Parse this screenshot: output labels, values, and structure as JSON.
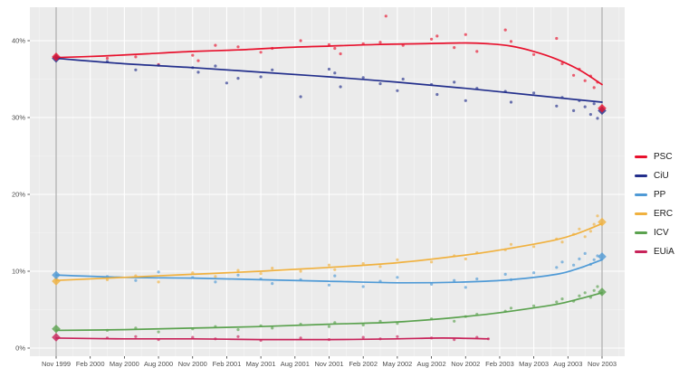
{
  "style": {
    "figure_background": "#ffffff",
    "plot_background": "#ebebeb",
    "grid_major_color": "#ffffff",
    "grid_minor_color": "#ffffff",
    "election_line_color": "#9f9f9f",
    "axis_tick_color": "#333333",
    "axis_label_color": "#4d4d4d"
  },
  "chart_data": {
    "type": "scatter",
    "title": "",
    "xlabel": "",
    "ylabel": "",
    "x_unit": "months since Nov 1999",
    "x_axis_ticks": [
      {
        "month": 0,
        "label": "Nov 1999"
      },
      {
        "month": 3,
        "label": "Feb 2000"
      },
      {
        "month": 6,
        "label": "May 2000"
      },
      {
        "month": 9,
        "label": "Aug 2000"
      },
      {
        "month": 12,
        "label": "Nov 2000"
      },
      {
        "month": 15,
        "label": "Feb 2001"
      },
      {
        "month": 18,
        "label": "May 2001"
      },
      {
        "month": 21,
        "label": "Aug 2001"
      },
      {
        "month": 24,
        "label": "Nov 2001"
      },
      {
        "month": 27,
        "label": "Feb 2002"
      },
      {
        "month": 30,
        "label": "May 2002"
      },
      {
        "month": 33,
        "label": "Aug 2002"
      },
      {
        "month": 36,
        "label": "Nov 2002"
      },
      {
        "month": 39,
        "label": "Feb 2003"
      },
      {
        "month": 42,
        "label": "May 2003"
      },
      {
        "month": 45,
        "label": "Aug 2003"
      },
      {
        "month": 48,
        "label": "Nov 2003"
      }
    ],
    "y_axis_ticks": [
      {
        "value": 0,
        "label": "0%"
      },
      {
        "value": 10,
        "label": "10%"
      },
      {
        "value": 20,
        "label": "20%"
      },
      {
        "value": 30,
        "label": "30%"
      },
      {
        "value": 40,
        "label": "40%"
      }
    ],
    "ylim": [
      -1,
      44.3
    ],
    "grid": true,
    "legend_position": "right",
    "election_lines_months": [
      0,
      48
    ],
    "series": [
      {
        "name": "PSC",
        "color": "#e8112d",
        "trend": [
          [
            0,
            37.8
          ],
          [
            4,
            38.0
          ],
          [
            8,
            38.3
          ],
          [
            12,
            38.6
          ],
          [
            16,
            38.8
          ],
          [
            20,
            39.1
          ],
          [
            24,
            39.3
          ],
          [
            28,
            39.5
          ],
          [
            32,
            39.6
          ],
          [
            36,
            39.7
          ],
          [
            38,
            39.6
          ],
          [
            40,
            39.3
          ],
          [
            42,
            38.6
          ],
          [
            44,
            37.6
          ],
          [
            46,
            36.2
          ],
          [
            48,
            34.3
          ]
        ],
        "polls": [
          [
            4.5,
            37.7
          ],
          [
            7,
            37.9
          ],
          [
            9,
            36.9
          ],
          [
            12,
            38.1
          ],
          [
            12.5,
            37.4
          ],
          [
            14,
            39.4
          ],
          [
            16,
            39.2
          ],
          [
            18,
            38.5
          ],
          [
            19,
            39.0
          ],
          [
            21.5,
            40.0
          ],
          [
            24,
            39.5
          ],
          [
            24.5,
            39.0
          ],
          [
            25,
            38.3
          ],
          [
            27,
            39.6
          ],
          [
            28.5,
            39.8
          ],
          [
            29,
            43.2
          ],
          [
            30.5,
            39.4
          ],
          [
            33,
            40.2
          ],
          [
            33.5,
            40.6
          ],
          [
            35,
            39.1
          ],
          [
            36,
            40.8
          ],
          [
            37,
            38.6
          ],
          [
            39.5,
            41.4
          ],
          [
            40,
            39.9
          ],
          [
            42,
            38.2
          ],
          [
            44,
            40.3
          ],
          [
            44.5,
            37.0
          ],
          [
            45.5,
            35.5
          ],
          [
            46,
            36.3
          ],
          [
            46.5,
            34.8
          ],
          [
            47,
            35.4
          ],
          [
            47.3,
            33.9
          ],
          [
            47.6,
            34.6
          ]
        ],
        "election_results": [
          [
            0,
            37.9
          ],
          [
            48,
            31.2
          ]
        ]
      },
      {
        "name": "CiU",
        "color": "#232f8c",
        "trend": [
          [
            0,
            37.7
          ],
          [
            6,
            37.0
          ],
          [
            12,
            36.5
          ],
          [
            18,
            35.9
          ],
          [
            24,
            35.3
          ],
          [
            30,
            34.6
          ],
          [
            36,
            33.8
          ],
          [
            42,
            32.9
          ],
          [
            46,
            32.3
          ],
          [
            48,
            32.0
          ]
        ],
        "polls": [
          [
            4.5,
            37.3
          ],
          [
            7,
            36.2
          ],
          [
            9,
            36.8
          ],
          [
            12,
            36.5
          ],
          [
            12.5,
            35.9
          ],
          [
            14,
            36.7
          ],
          [
            15,
            34.5
          ],
          [
            16,
            35.1
          ],
          [
            18,
            35.3
          ],
          [
            19,
            36.2
          ],
          [
            21.5,
            32.7
          ],
          [
            24,
            36.3
          ],
          [
            24.5,
            35.8
          ],
          [
            25,
            34.0
          ],
          [
            27,
            35.2
          ],
          [
            28.5,
            34.4
          ],
          [
            30,
            33.5
          ],
          [
            30.5,
            35.0
          ],
          [
            33,
            34.3
          ],
          [
            33.5,
            33.0
          ],
          [
            35,
            34.6
          ],
          [
            36,
            32.2
          ],
          [
            37,
            33.8
          ],
          [
            39.5,
            33.4
          ],
          [
            40,
            32.0
          ],
          [
            42,
            33.2
          ],
          [
            44,
            31.5
          ],
          [
            44.5,
            32.6
          ],
          [
            45.5,
            30.9
          ],
          [
            46,
            32.2
          ],
          [
            46.5,
            31.4
          ],
          [
            47,
            30.4
          ],
          [
            47.3,
            31.8
          ],
          [
            47.6,
            29.9
          ]
        ],
        "election_results": [
          [
            0,
            37.7
          ],
          [
            48,
            30.9
          ]
        ]
      },
      {
        "name": "PP",
        "color": "#4f9ad6",
        "trend": [
          [
            0,
            9.5
          ],
          [
            6,
            9.2
          ],
          [
            12,
            9.1
          ],
          [
            18,
            8.9
          ],
          [
            24,
            8.7
          ],
          [
            30,
            8.5
          ],
          [
            36,
            8.6
          ],
          [
            40,
            8.9
          ],
          [
            44,
            9.6
          ],
          [
            46,
            10.4
          ],
          [
            48,
            11.5
          ]
        ],
        "polls": [
          [
            4.5,
            9.3
          ],
          [
            7,
            8.8
          ],
          [
            9,
            9.9
          ],
          [
            12,
            9.2
          ],
          [
            14,
            8.6
          ],
          [
            16,
            9.5
          ],
          [
            18,
            9.0
          ],
          [
            19,
            8.4
          ],
          [
            21.5,
            8.9
          ],
          [
            24,
            8.2
          ],
          [
            24.5,
            9.4
          ],
          [
            27,
            8.0
          ],
          [
            28.5,
            8.7
          ],
          [
            30,
            9.2
          ],
          [
            33,
            8.3
          ],
          [
            35,
            8.8
          ],
          [
            36,
            7.9
          ],
          [
            37,
            9.0
          ],
          [
            39.5,
            9.6
          ],
          [
            40,
            8.9
          ],
          [
            42,
            9.8
          ],
          [
            44,
            10.5
          ],
          [
            44.5,
            11.2
          ],
          [
            45.5,
            10.8
          ],
          [
            46,
            11.6
          ],
          [
            46.5,
            12.3
          ],
          [
            47,
            10.9
          ],
          [
            47.3,
            11.5
          ],
          [
            47.6,
            12.0
          ]
        ],
        "election_results": [
          [
            0,
            9.5
          ],
          [
            48,
            11.9
          ]
        ]
      },
      {
        "name": "ERC",
        "color": "#f0b13f",
        "trend": [
          [
            0,
            8.8
          ],
          [
            6,
            9.2
          ],
          [
            12,
            9.6
          ],
          [
            18,
            10.0
          ],
          [
            24,
            10.5
          ],
          [
            30,
            11.1
          ],
          [
            36,
            12.1
          ],
          [
            40,
            13.0
          ],
          [
            44,
            14.1
          ],
          [
            46,
            15.0
          ],
          [
            48,
            16.2
          ]
        ],
        "polls": [
          [
            4.5,
            8.9
          ],
          [
            7,
            9.4
          ],
          [
            9,
            8.6
          ],
          [
            12,
            9.8
          ],
          [
            14,
            9.3
          ],
          [
            16,
            10.1
          ],
          [
            18,
            9.7
          ],
          [
            19,
            10.4
          ],
          [
            21.5,
            10.0
          ],
          [
            24,
            10.8
          ],
          [
            24.5,
            10.2
          ],
          [
            27,
            11.0
          ],
          [
            28.5,
            10.6
          ],
          [
            30,
            11.5
          ],
          [
            33,
            11.2
          ],
          [
            35,
            12.0
          ],
          [
            36,
            11.6
          ],
          [
            37,
            12.4
          ],
          [
            39.5,
            12.8
          ],
          [
            40,
            13.5
          ],
          [
            42,
            13.2
          ],
          [
            44,
            14.2
          ],
          [
            44.5,
            13.8
          ],
          [
            45.5,
            14.8
          ],
          [
            46,
            15.5
          ],
          [
            46.5,
            14.5
          ],
          [
            47,
            15.2
          ],
          [
            47.3,
            16.1
          ],
          [
            47.6,
            17.2
          ]
        ],
        "election_results": [
          [
            0,
            8.7
          ],
          [
            48,
            16.4
          ]
        ]
      },
      {
        "name": "ICV",
        "color": "#5ba24f",
        "trend": [
          [
            0,
            2.3
          ],
          [
            6,
            2.4
          ],
          [
            12,
            2.6
          ],
          [
            18,
            2.8
          ],
          [
            24,
            3.1
          ],
          [
            30,
            3.4
          ],
          [
            36,
            4.1
          ],
          [
            40,
            4.8
          ],
          [
            44,
            5.7
          ],
          [
            46,
            6.4
          ],
          [
            48,
            7.2
          ]
        ],
        "polls": [
          [
            4.5,
            2.3
          ],
          [
            7,
            2.6
          ],
          [
            9,
            2.1
          ],
          [
            12,
            2.5
          ],
          [
            14,
            2.8
          ],
          [
            16,
            2.4
          ],
          [
            18,
            2.9
          ],
          [
            19,
            2.6
          ],
          [
            21.5,
            3.1
          ],
          [
            24,
            2.8
          ],
          [
            24.5,
            3.3
          ],
          [
            27,
            3.0
          ],
          [
            28.5,
            3.5
          ],
          [
            30,
            3.2
          ],
          [
            33,
            3.8
          ],
          [
            35,
            3.5
          ],
          [
            36,
            4.1
          ],
          [
            37,
            4.4
          ],
          [
            39.5,
            4.8
          ],
          [
            40,
            5.2
          ],
          [
            42,
            5.5
          ],
          [
            44,
            6.0
          ],
          [
            44.5,
            6.4
          ],
          [
            45.5,
            6.1
          ],
          [
            46,
            6.8
          ],
          [
            46.5,
            7.2
          ],
          [
            47,
            6.6
          ],
          [
            47.3,
            7.5
          ],
          [
            47.6,
            8.0
          ]
        ],
        "election_results": [
          [
            0,
            2.5
          ],
          [
            48,
            7.3
          ]
        ]
      },
      {
        "name": "EUiA",
        "color": "#c8235a",
        "trend": [
          [
            0,
            1.3
          ],
          [
            6,
            1.2
          ],
          [
            12,
            1.2
          ],
          [
            18,
            1.1
          ],
          [
            24,
            1.1
          ],
          [
            30,
            1.2
          ],
          [
            34,
            1.3
          ],
          [
            38,
            1.2
          ]
        ],
        "polls": [
          [
            4.5,
            1.3
          ],
          [
            7,
            1.5
          ],
          [
            9,
            1.1
          ],
          [
            12,
            1.4
          ],
          [
            14,
            1.2
          ],
          [
            16,
            1.5
          ],
          [
            18,
            1.0
          ],
          [
            21.5,
            1.3
          ],
          [
            24,
            1.1
          ],
          [
            27,
            1.4
          ],
          [
            28.5,
            1.2
          ],
          [
            30,
            1.5
          ],
          [
            33,
            1.3
          ],
          [
            35,
            1.1
          ],
          [
            37,
            1.4
          ],
          [
            38,
            1.2
          ]
        ],
        "election_results": [
          [
            0,
            1.4
          ]
        ]
      }
    ]
  },
  "legend": {
    "items": [
      "PSC",
      "CiU",
      "PP",
      "ERC",
      "ICV",
      "EUiA"
    ]
  }
}
